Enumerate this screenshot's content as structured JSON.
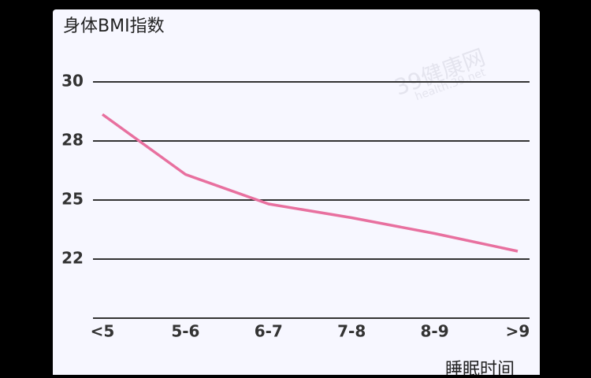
{
  "chart_data": {
    "type": "line",
    "title": "身体BMI指数",
    "x_label": "睡眠时间",
    "watermark": "39健康网",
    "watermark_sub": "health.39.net",
    "categories": [
      "<5",
      "5-6",
      "6-7",
      "7-8",
      "8-9",
      ">9"
    ],
    "series": [
      {
        "name": "BMI",
        "color": "#e8709f",
        "values": [
          28.9,
          26.3,
          24.8,
          24.1,
          23.3,
          22.4
        ]
      }
    ],
    "ylim": [
      19,
      30
    ],
    "yticks": [
      30,
      28,
      25,
      22
    ],
    "grid": true
  }
}
